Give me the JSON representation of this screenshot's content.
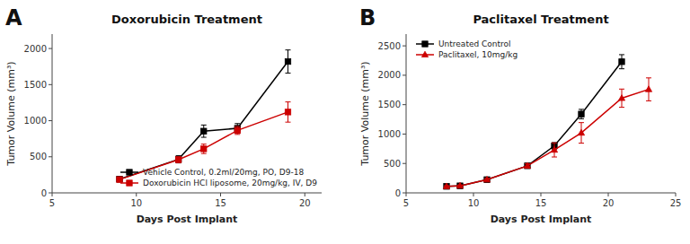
{
  "chart_data": [
    {
      "type": "line",
      "title": "Doxorubicin Treatment",
      "annotation": "A",
      "xlabel": "Days Post Implant",
      "ylabel": "Tumor Volume (mm³)",
      "xlim": [
        5,
        21
      ],
      "xticks": [
        5,
        10,
        15,
        20
      ],
      "ylim": [
        0,
        2200
      ],
      "yticks": [
        0,
        500,
        1000,
        1500,
        2000
      ],
      "grid": false,
      "legend": "lower right",
      "series": [
        {
          "name": "Vehicle Control, 0.2ml/20mg, PO, D9-18",
          "color": "#000000",
          "marker": "square",
          "x": [
            9,
            12.5,
            14,
            16,
            19
          ],
          "values": [
            190,
            465,
            855,
            895,
            1820
          ],
          "errors": [
            20,
            50,
            85,
            65,
            160
          ]
        },
        {
          "name": "Doxorubicin HCl liposome, 20mg/kg, IV, D9",
          "color": "#cc0000",
          "marker": "square",
          "x": [
            9,
            12.5,
            14,
            16,
            19
          ],
          "values": [
            185,
            460,
            610,
            865,
            1120
          ],
          "errors": [
            18,
            40,
            65,
            55,
            140
          ]
        }
      ]
    },
    {
      "type": "line",
      "title": "Paclitaxel Treatment",
      "annotation": "B",
      "xlabel": "Days Post Implant",
      "ylabel": "Tumor Volume (mm³)",
      "xlim": [
        5,
        25
      ],
      "xticks": [
        5,
        10,
        15,
        20,
        25
      ],
      "ylim": [
        0,
        2700
      ],
      "yticks": [
        0,
        500,
        1000,
        1500,
        2000,
        2500
      ],
      "grid": false,
      "legend": "upper left",
      "series": [
        {
          "name": "Untreated Control",
          "color": "#000000",
          "marker": "square",
          "x": [
            8,
            9,
            11,
            14,
            16,
            18,
            21
          ],
          "values": [
            110,
            120,
            225,
            460,
            800,
            1340,
            2230
          ],
          "errors": [
            12,
            12,
            22,
            35,
            55,
            80,
            120
          ]
        },
        {
          "name": "Paclitaxel, 10mg/kg",
          "color": "#cc0000",
          "marker": "triangle",
          "x": [
            8,
            9,
            11,
            14,
            16,
            18,
            21,
            23
          ],
          "values": [
            110,
            120,
            225,
            460,
            730,
            1020,
            1610,
            1760
          ],
          "errors": [
            12,
            12,
            22,
            35,
            120,
            175,
            155,
            195
          ]
        }
      ]
    }
  ]
}
